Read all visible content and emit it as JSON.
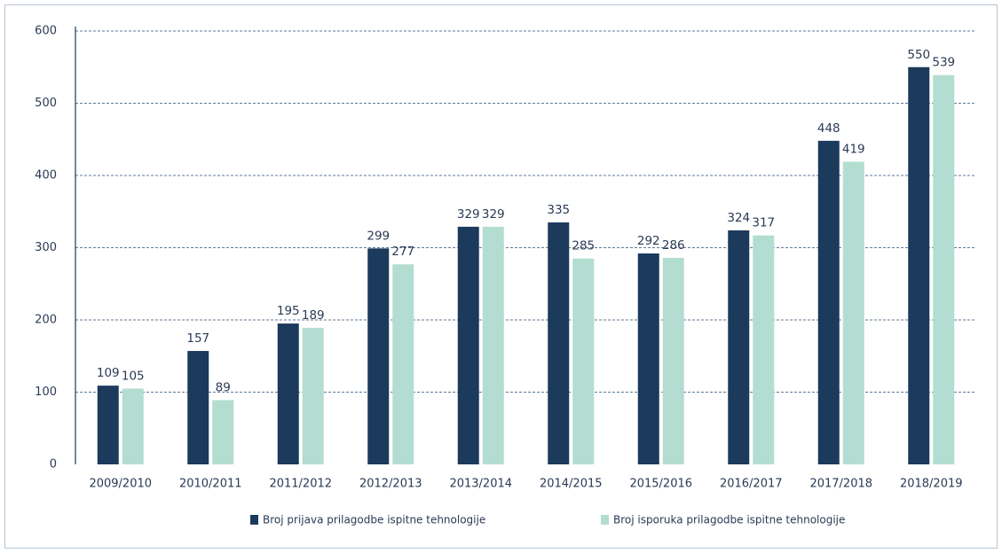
{
  "chart_data": {
    "type": "bar",
    "categories": [
      "2009/2010",
      "2010/2011",
      "2011/2012",
      "2012/2013",
      "2013/2014",
      "2014/2015",
      "2015/2016",
      "2016/2017",
      "2017/2018",
      "2018/2019"
    ],
    "series": [
      {
        "name": "Broj prijava prilagodbe ispitne tehnologije",
        "color": "#1b3a5c",
        "values": [
          109,
          157,
          195,
          299,
          329,
          335,
          292,
          324,
          448,
          550
        ]
      },
      {
        "name": "Broj isporuka prilagodbe ispitne tehnologije",
        "color": "#b3ddd1",
        "values": [
          105,
          89,
          189,
          277,
          329,
          285,
          286,
          317,
          419,
          539
        ]
      }
    ],
    "ylim": [
      0,
      600
    ],
    "yticks": [
      0,
      100,
      200,
      300,
      400,
      500,
      600
    ],
    "grid": true,
    "legend": "bottom"
  }
}
